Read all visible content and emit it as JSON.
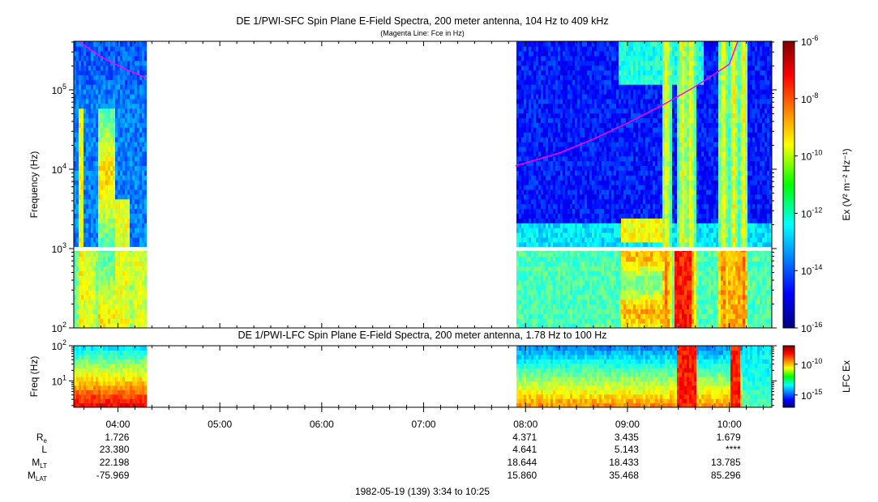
{
  "chart_data": [
    {
      "type": "heatmap",
      "title": "DE 1/PWI-SFC  Spin Plane E-Field Spectra, 200 meter antenna, 104 Hz to 409 kHz",
      "subtitle": "(Magenta Line: Fce in Hz)",
      "ylabel": "Frequency (Hz)",
      "yscale": "log",
      "ylim": [
        100,
        409000
      ],
      "yticks": [
        {
          "value": 100,
          "base": "10",
          "exp": "2"
        },
        {
          "value": 1000,
          "base": "10",
          "exp": "3"
        },
        {
          "value": 10000,
          "base": "10",
          "exp": "4"
        },
        {
          "value": 100000,
          "base": "10",
          "exp": "5"
        }
      ],
      "colorbar": {
        "label": "Ex (V² m⁻² Hz⁻¹)",
        "scale": "log",
        "range": [
          1e-16,
          1e-06
        ],
        "ticks": [
          {
            "value": 1e-16,
            "base": "10",
            "exp": "-16"
          },
          {
            "value": 1e-14,
            "base": "10",
            "exp": "-14"
          },
          {
            "value": 1e-12,
            "base": "10",
            "exp": "-12"
          },
          {
            "value": 1e-10,
            "base": "10",
            "exp": "-10"
          },
          {
            "value": 1e-08,
            "base": "10",
            "exp": "-8"
          },
          {
            "value": 1e-06,
            "base": "10",
            "exp": "-6"
          }
        ]
      },
      "data_gap": [
        "04:17",
        "07:54"
      ],
      "fce_line": [
        {
          "t": "03:37",
          "hz": 409000
        },
        {
          "t": "03:50",
          "hz": 260000
        },
        {
          "t": "04:05",
          "hz": 180000
        },
        {
          "t": "04:17",
          "hz": 140000
        },
        {
          "t": "07:54",
          "hz": 11000
        },
        {
          "t": "08:20",
          "hz": 16000
        },
        {
          "t": "08:40",
          "hz": 24000
        },
        {
          "t": "09:00",
          "hz": 38000
        },
        {
          "t": "09:20",
          "hz": 63000
        },
        {
          "t": "09:40",
          "hz": 110000
        },
        {
          "t": "10:00",
          "hz": 210000
        },
        {
          "t": "10:05",
          "hz": 409000
        }
      ]
    },
    {
      "type": "heatmap",
      "title": "DE 1/PWI-LFC  Spin Plane E-Field Spectra, 200 meter antenna, 1.78 Hz to 100 Hz",
      "ylabel": "Freq (Hz)",
      "yscale": "log",
      "ylim": [
        1.78,
        100
      ],
      "yticks": [
        {
          "value": 10,
          "base": "10",
          "exp": "1"
        },
        {
          "value": 100,
          "base": "10",
          "exp": "2"
        }
      ],
      "colorbar": {
        "label": "LFC Ex",
        "scale": "log",
        "range": [
          1e-17,
          1e-07
        ],
        "ticks": [
          {
            "value": 1e-15,
            "base": "10",
            "exp": "-15"
          },
          {
            "value": 1e-10,
            "base": "10",
            "exp": "-10"
          }
        ]
      },
      "data_gap": [
        "04:17",
        "07:54"
      ]
    }
  ],
  "time_axis": {
    "range": [
      "03:34",
      "10:25"
    ],
    "ticks": [
      "04:00",
      "05:00",
      "06:00",
      "07:00",
      "08:00",
      "09:00",
      "10:00"
    ]
  },
  "ephemeris": {
    "rows": [
      {
        "label": "R",
        "sub": "e",
        "values": [
          "1.726",
          "",
          "",
          "",
          "4.371",
          "3.435",
          "1.679"
        ]
      },
      {
        "label": "L",
        "sub": "",
        "values": [
          "23.380",
          "",
          "",
          "",
          "4.641",
          "5.143",
          "****"
        ]
      },
      {
        "label": "M",
        "sub": "LT",
        "values": [
          "22.198",
          "",
          "",
          "",
          "18.644",
          "18.433",
          "13.785"
        ]
      },
      {
        "label": "M",
        "sub": "LAT",
        "values": [
          "-75.969",
          "",
          "",
          "",
          "15.860",
          "35.468",
          "85.296"
        ]
      }
    ]
  },
  "footer": "1982-05-19 (139) 3:34 to 10:25",
  "colors": {
    "fce_line": "#ff00ff",
    "background": "#ffffff",
    "gap": "#ffffff"
  }
}
